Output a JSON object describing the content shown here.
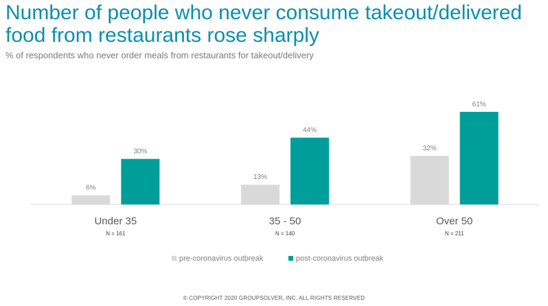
{
  "title": "Number of people who never consume takeout/delivered food from restaurants rose sharply",
  "subtitle": "% of respondents who never order meals from restaurants for takeout/delivery",
  "footer": "© COPYRIGHT 2020 GROUPSOLVER, INC. ALL RIGHTS RESERVED",
  "colors": {
    "pre": "#d9d9d9",
    "post": "#009e9a",
    "axis": "#d9d9d9",
    "label": "#7f7f7f",
    "title": "#0a8fae"
  },
  "chart_data": {
    "type": "bar",
    "categories": [
      "Under 35",
      "35 - 50",
      "Over 50"
    ],
    "sample_sizes": [
      "N = 161",
      "N = 140",
      "N = 211"
    ],
    "series": [
      {
        "name": "pre-coronavirus outbreak",
        "values": [
          6,
          13,
          32
        ],
        "value_labels": [
          "6%",
          "13%",
          "32%"
        ]
      },
      {
        "name": "post-coronavirus outbreak",
        "values": [
          30,
          44,
          61
        ],
        "value_labels": [
          "30%",
          "44%",
          "61%"
        ]
      }
    ],
    "ylim": [
      0,
      61
    ],
    "legend": "bottom",
    "grid": false
  }
}
